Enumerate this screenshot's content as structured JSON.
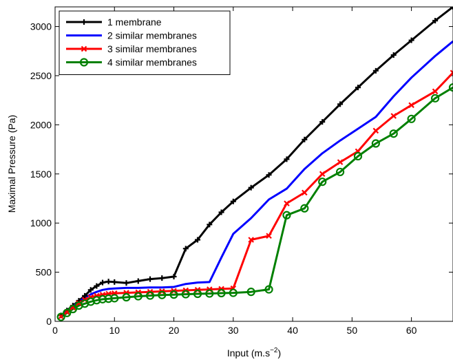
{
  "chart_data": {
    "type": "line",
    "xlabel": "Input (m.s",
    "xlabel_sup": "−2",
    "xlabel_suffix": ")",
    "ylabel": "Maximal Pressure (Pa)",
    "xlim": [
      0,
      67
    ],
    "ylim": [
      0,
      3200
    ],
    "xticks": [
      0,
      10,
      20,
      30,
      40,
      50,
      60
    ],
    "yticks": [
      0,
      500,
      1000,
      1500,
      2000,
      2500,
      3000
    ],
    "legend_position": "top-left",
    "grid": false,
    "series": [
      {
        "name": "1 membrane",
        "color": "#000000",
        "marker": "plus",
        "x": [
          1,
          2,
          3,
          4,
          5,
          6,
          7,
          8,
          9,
          10,
          12,
          14,
          16,
          18,
          20,
          22,
          24,
          26,
          28,
          30,
          33,
          36,
          39,
          42,
          45,
          48,
          51,
          54,
          57,
          60,
          64,
          67
        ],
        "y": [
          60,
          110,
          160,
          210,
          260,
          320,
          360,
          395,
          405,
          400,
          390,
          410,
          430,
          440,
          455,
          740,
          830,
          985,
          1110,
          1220,
          1360,
          1490,
          1650,
          1850,
          2030,
          2210,
          2380,
          2550,
          2710,
          2860,
          3060,
          3200
        ]
      },
      {
        "name": "2 similar membranes",
        "color": "#0000ff",
        "marker": "none",
        "x": [
          1,
          2,
          3,
          4,
          5,
          6,
          7,
          8,
          9,
          10,
          12,
          14,
          16,
          18,
          20,
          22,
          24,
          26,
          28,
          30,
          33,
          36,
          39,
          42,
          45,
          48,
          51,
          54,
          57,
          60,
          64,
          67
        ],
        "y": [
          55,
          100,
          150,
          200,
          240,
          275,
          300,
          320,
          330,
          335,
          340,
          340,
          345,
          345,
          350,
          380,
          395,
          400,
          650,
          890,
          1050,
          1240,
          1350,
          1550,
          1710,
          1840,
          1960,
          2080,
          2290,
          2480,
          2700,
          2850
        ]
      },
      {
        "name": "3 similar membranes",
        "color": "#ff0000",
        "marker": "x",
        "x": [
          1,
          2,
          3,
          4,
          5,
          6,
          7,
          8,
          9,
          10,
          12,
          14,
          16,
          18,
          20,
          22,
          24,
          26,
          28,
          30,
          33,
          36,
          39,
          42,
          45,
          48,
          51,
          54,
          57,
          60,
          64,
          67
        ],
        "y": [
          50,
          95,
          140,
          185,
          220,
          245,
          260,
          270,
          280,
          285,
          290,
          295,
          300,
          305,
          310,
          315,
          320,
          325,
          330,
          335,
          830,
          870,
          1200,
          1310,
          1500,
          1620,
          1730,
          1940,
          2090,
          2200,
          2340,
          2530
        ]
      },
      {
        "name": "4 similar membranes",
        "color": "#008000",
        "marker": "circle",
        "x": [
          1,
          2,
          3,
          4,
          5,
          6,
          7,
          8,
          9,
          10,
          12,
          14,
          16,
          18,
          20,
          22,
          24,
          26,
          28,
          30,
          33,
          36,
          39,
          42,
          45,
          48,
          51,
          54,
          57,
          60,
          64,
          67
        ],
        "y": [
          45,
          85,
          125,
          160,
          180,
          200,
          215,
          225,
          230,
          235,
          245,
          255,
          262,
          268,
          272,
          276,
          280,
          283,
          287,
          290,
          300,
          325,
          1080,
          1150,
          1420,
          1520,
          1680,
          1810,
          1910,
          2060,
          2270,
          2380
        ]
      }
    ]
  }
}
